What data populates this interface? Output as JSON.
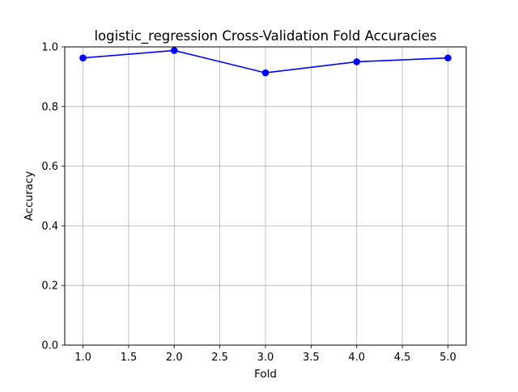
{
  "chart_data": {
    "type": "line",
    "title": "logistic_regression Cross-Validation Fold Accuracies",
    "xlabel": "Fold",
    "ylabel": "Accuracy",
    "xlim": [
      0.8,
      5.2
    ],
    "ylim": [
      0.0,
      1.0
    ],
    "x_ticks": [
      "1.0",
      "1.5",
      "2.0",
      "2.5",
      "3.0",
      "3.5",
      "4.0",
      "4.5",
      "5.0"
    ],
    "x_tick_values": [
      1.0,
      1.5,
      2.0,
      2.5,
      3.0,
      3.5,
      4.0,
      4.5,
      5.0
    ],
    "y_ticks": [
      "0.0",
      "0.2",
      "0.4",
      "0.6",
      "0.8",
      "1.0"
    ],
    "y_tick_values": [
      0.0,
      0.2,
      0.4,
      0.6,
      0.8,
      1.0
    ],
    "grid": true,
    "series": [
      {
        "x": [
          1,
          2,
          3,
          4,
          5
        ],
        "values": [
          0.963,
          0.988,
          0.913,
          0.95,
          0.963
        ],
        "color": "#0000ff",
        "marker": "circle"
      }
    ],
    "colors": {
      "grid": "#b0b0b0",
      "axes": "#000000",
      "line": "#0000ff"
    }
  }
}
